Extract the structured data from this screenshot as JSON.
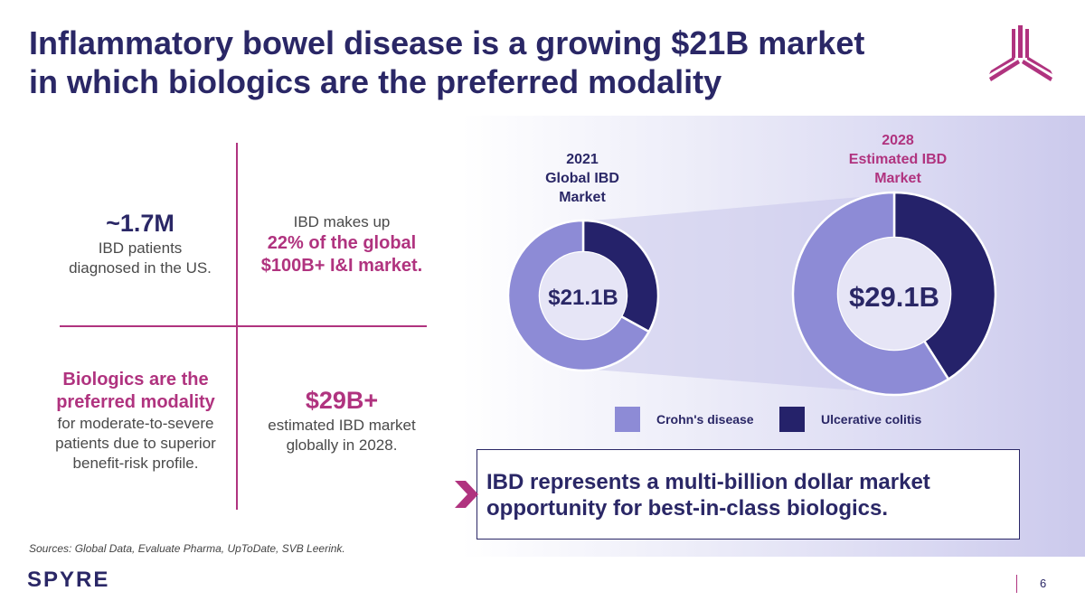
{
  "header": {
    "title_line1": "Inflammatory bowel disease is a growing $21B market",
    "title_line2": "in which biologics are the preferred modality"
  },
  "colors": {
    "navy": "#2a2766",
    "magenta": "#b0337f",
    "crohns": "#8d8bd6",
    "uc": "#25226a"
  },
  "quadrants": {
    "q1": {
      "big": "~1.7M",
      "line1": "IBD patients",
      "line2": "diagnosed in the US."
    },
    "q2": {
      "pre": "IBD makes up",
      "em1": "22% of the global",
      "em2": "$100B+ I&I market."
    },
    "q3": {
      "em1": "Biologics are the",
      "em2": "preferred modality",
      "line1": "for moderate-to-severe",
      "line2": "patients due to superior",
      "line3": "benefit-risk profile."
    },
    "q4": {
      "big": "$29B+",
      "line1": "estimated IBD market",
      "line2": "globally in 2028."
    }
  },
  "chart_data": [
    {
      "type": "pie",
      "title": "2021 Global IBD Market",
      "title_lines": [
        "2021",
        "Global IBD",
        "Market"
      ],
      "center_label": "$21.1B",
      "total": 21.1,
      "categories": [
        "Crohn's disease",
        "Ulcerative colitis"
      ],
      "values": [
        67,
        33
      ]
    },
    {
      "type": "pie",
      "title": "2028 Estimated IBD Market",
      "title_lines": [
        "2028",
        "Estimated IBD",
        "Market"
      ],
      "center_label": "$29.1B",
      "total": 29.1,
      "categories": [
        "Crohn's disease",
        "Ulcerative colitis"
      ],
      "values": [
        59,
        41
      ]
    }
  ],
  "legend": {
    "crohns": "Crohn's disease",
    "uc": "Ulcerative colitis"
  },
  "callout": {
    "line1": "IBD represents a multi-billion dollar market",
    "line2": "opportunity for best-in-class biologics."
  },
  "footer": {
    "sources": "Sources: Global Data, Evaluate Pharma, UpToDate, SVB Leerink.",
    "brand": "SPYRE",
    "page_number": "6"
  }
}
